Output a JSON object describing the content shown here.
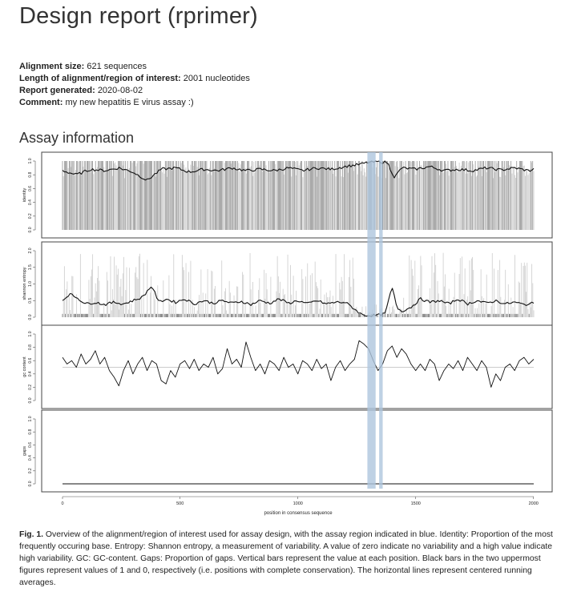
{
  "report": {
    "title": "Design report (rprimer)",
    "meta": [
      {
        "label": "Alignment size:",
        "value": "621 sequences"
      },
      {
        "label": "Length of alignment/region of interest:",
        "value": "2001 nucleotides"
      },
      {
        "label": "Report generated:",
        "value": "2020-08-02"
      },
      {
        "label": "Comment:",
        "value": "my new hepatitis E virus assay :)"
      }
    ],
    "section_title": "Assay information"
  },
  "figure": {
    "caption_label": "Fig. 1.",
    "caption_text": "Overview of the alignment/region of interest used for assay design, with the assay region indicated in blue. Identity: Proportion of the most frequently occuring base. Entropy: Shannon entropy, a measurement of variability. A value of zero indicate no variability and a high value indicate high variability. GC: GC-content. Gaps: Proportion of gaps. Vertical bars represent the value at each position. Black bars in the two uppermost figures represent values of 1 and 0, respectively (i.e. positions with complete conservation). The horizontal lines represent centered running averages."
  },
  "chart_data": {
    "type": "line",
    "xlabel": "position in consensus sequence",
    "xlim": [
      1,
      2001
    ],
    "x_ticks": [
      "0",
      "500",
      "1000",
      "1500",
      "2000"
    ],
    "highlight_regions": [
      [
        1295,
        1330
      ],
      [
        1345,
        1360
      ]
    ],
    "highlight_color": "#aec6dd",
    "panels": [
      {
        "ylabel": "identity",
        "ylim": [
          0,
          1
        ],
        "y_ticks": [
          "0.0",
          "0.2",
          "0.4",
          "0.6",
          "0.8",
          "1.0"
        ],
        "running_average": {
          "x": [
            1,
            60,
            120,
            180,
            240,
            300,
            360,
            420,
            480,
            540,
            600,
            660,
            720,
            780,
            840,
            900,
            960,
            1020,
            1080,
            1140,
            1200,
            1260,
            1300,
            1340,
            1380,
            1410,
            1440,
            1500,
            1560,
            1620,
            1680,
            1740,
            1800,
            1860,
            1920,
            1980,
            2001
          ],
          "y": [
            0.86,
            0.8,
            0.88,
            0.86,
            0.9,
            0.84,
            0.72,
            0.88,
            0.9,
            0.84,
            0.88,
            0.86,
            0.9,
            0.86,
            0.88,
            0.86,
            0.9,
            0.86,
            0.9,
            0.88,
            0.92,
            0.95,
            0.98,
            0.99,
            0.98,
            0.76,
            0.9,
            0.88,
            0.92,
            0.86,
            0.88,
            0.86,
            0.9,
            0.87,
            0.9,
            0.86,
            0.88
          ]
        }
      },
      {
        "ylabel": "shannon entropy",
        "ylim": [
          0,
          2
        ],
        "y_ticks": [
          "0.0",
          "0.5",
          "1.0",
          "1.5",
          "2.0"
        ],
        "running_average": {
          "x": [
            1,
            30,
            60,
            100,
            140,
            180,
            220,
            260,
            300,
            340,
            380,
            410,
            440,
            480,
            520,
            560,
            600,
            640,
            680,
            720,
            760,
            800,
            840,
            880,
            920,
            960,
            1000,
            1040,
            1080,
            1120,
            1160,
            1200,
            1240,
            1270,
            1300,
            1340,
            1370,
            1400,
            1420,
            1440,
            1480,
            1520,
            1560,
            1600,
            1640,
            1680,
            1720,
            1760,
            1800,
            1840,
            1880,
            1920,
            1960,
            2001
          ],
          "y": [
            0.5,
            0.7,
            0.6,
            0.4,
            0.45,
            0.38,
            0.45,
            0.4,
            0.5,
            0.6,
            0.95,
            0.45,
            0.55,
            0.45,
            0.55,
            0.4,
            0.5,
            0.42,
            0.5,
            0.42,
            0.48,
            0.38,
            0.5,
            0.42,
            0.55,
            0.42,
            0.5,
            0.4,
            0.5,
            0.4,
            0.45,
            0.45,
            0.25,
            0.08,
            0.05,
            0.06,
            0.1,
            0.9,
            0.3,
            0.18,
            0.3,
            0.55,
            0.45,
            0.5,
            0.4,
            0.55,
            0.4,
            0.5,
            0.42,
            0.5,
            0.4,
            0.45,
            0.38,
            0.42
          ]
        }
      },
      {
        "ylabel": "gc content",
        "ylim": [
          0,
          1
        ],
        "y_ticks": [
          "0.0",
          "0.2",
          "0.4",
          "0.6",
          "0.8",
          "1.0"
        ],
        "reference_line": 0.5,
        "values": {
          "x": [
            1,
            20,
            40,
            60,
            80,
            100,
            120,
            140,
            160,
            180,
            200,
            220,
            240,
            260,
            280,
            300,
            320,
            340,
            360,
            380,
            400,
            420,
            440,
            460,
            480,
            500,
            520,
            540,
            560,
            580,
            600,
            620,
            640,
            660,
            680,
            700,
            720,
            740,
            760,
            780,
            800,
            820,
            840,
            860,
            880,
            900,
            920,
            940,
            960,
            980,
            1000,
            1020,
            1040,
            1060,
            1080,
            1100,
            1120,
            1140,
            1160,
            1180,
            1200,
            1220,
            1240,
            1260,
            1280,
            1300,
            1320,
            1340,
            1360,
            1380,
            1400,
            1420,
            1440,
            1460,
            1480,
            1500,
            1520,
            1540,
            1560,
            1580,
            1600,
            1620,
            1640,
            1660,
            1680,
            1700,
            1720,
            1740,
            1760,
            1780,
            1800,
            1820,
            1840,
            1860,
            1880,
            1900,
            1920,
            1940,
            1960,
            1980,
            2001
          ],
          "y": [
            0.65,
            0.55,
            0.6,
            0.5,
            0.7,
            0.55,
            0.62,
            0.75,
            0.55,
            0.65,
            0.45,
            0.35,
            0.22,
            0.45,
            0.6,
            0.4,
            0.55,
            0.65,
            0.45,
            0.6,
            0.55,
            0.3,
            0.25,
            0.45,
            0.35,
            0.55,
            0.6,
            0.48,
            0.62,
            0.45,
            0.55,
            0.5,
            0.65,
            0.4,
            0.48,
            0.78,
            0.55,
            0.62,
            0.5,
            0.88,
            0.65,
            0.45,
            0.55,
            0.4,
            0.6,
            0.55,
            0.45,
            0.65,
            0.5,
            0.55,
            0.4,
            0.6,
            0.55,
            0.45,
            0.62,
            0.48,
            0.55,
            0.3,
            0.5,
            0.6,
            0.45,
            0.55,
            0.62,
            0.9,
            0.85,
            0.78,
            0.6,
            0.45,
            0.55,
            0.75,
            0.82,
            0.65,
            0.78,
            0.7,
            0.55,
            0.45,
            0.55,
            0.45,
            0.62,
            0.55,
            0.3,
            0.45,
            0.55,
            0.48,
            0.6,
            0.45,
            0.65,
            0.55,
            0.45,
            0.6,
            0.5,
            0.2,
            0.4,
            0.3,
            0.5,
            0.55,
            0.45,
            0.6,
            0.65,
            0.55,
            0.62
          ]
        }
      },
      {
        "ylabel": "gaps",
        "ylim": [
          0,
          1
        ],
        "y_ticks": [
          "0.0",
          "0.2",
          "0.4",
          "0.6",
          "0.8",
          "1.0"
        ],
        "values": {
          "x": [
            1,
            2001
          ],
          "y": [
            0.0,
            0.0
          ]
        }
      }
    ]
  }
}
